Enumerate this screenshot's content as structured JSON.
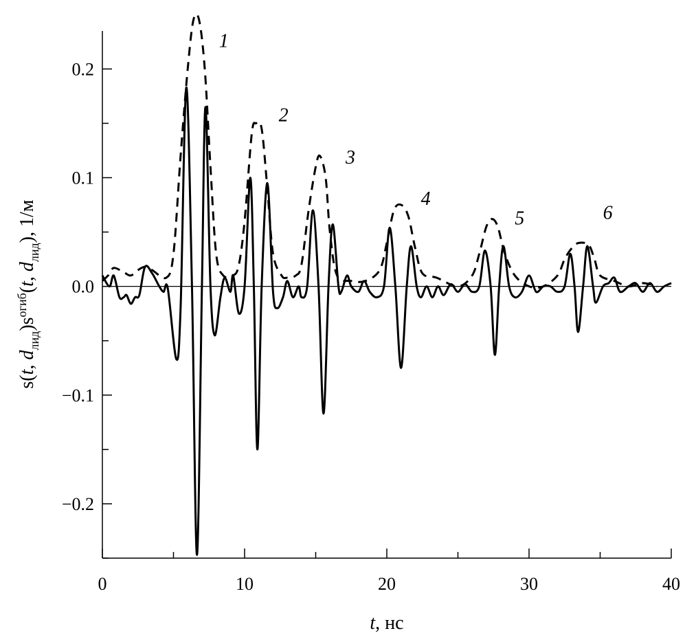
{
  "chart_data": {
    "type": "line",
    "title": "",
    "xlabel": {
      "var": "t",
      "rest": ", нс"
    },
    "ylabel": {
      "s1": "s(",
      "t1": "t",
      "c1": ", ",
      "d1": "d",
      "sub1": "лид",
      "p1": ")s",
      "sup": "огиб",
      "s2": "(",
      "t2": "t",
      "c2": ", ",
      "d2": "d",
      "sub2": "лид",
      "p2": "), 1/м"
    },
    "xlim": [
      0,
      40
    ],
    "ylim": [
      -0.25,
      0.235
    ],
    "xticks": [
      0,
      10,
      20,
      30,
      40
    ],
    "xtick_labels": [
      "0",
      "10",
      "20",
      "30",
      "40"
    ],
    "xminor": [
      5,
      15,
      25,
      35
    ],
    "yticks": [
      -0.2,
      -0.1,
      0.0,
      0.1,
      0.2
    ],
    "ytick_labels": [
      "−0.2",
      "−0.1",
      "0.0",
      "0.1",
      "0.2"
    ],
    "yminor": [
      -0.25,
      -0.15,
      -0.05,
      0.05,
      0.15
    ],
    "grid": false,
    "zero_line": true,
    "color": "#000000",
    "series": [
      {
        "style": "solid",
        "points": [
          [
            0,
            0.01
          ],
          [
            0.5,
            0.0
          ],
          [
            0.8,
            0.01
          ],
          [
            1.2,
            -0.01
          ],
          [
            1.5,
            -0.01
          ],
          [
            1.7,
            -0.008
          ],
          [
            2.0,
            -0.016
          ],
          [
            2.3,
            -0.01
          ],
          [
            2.6,
            -0.008
          ],
          [
            3.0,
            0.018
          ],
          [
            3.5,
            0.012
          ],
          [
            4.0,
            0.0
          ],
          [
            4.3,
            -0.005
          ],
          [
            4.6,
            -0.002
          ],
          [
            5.2,
            -0.067
          ],
          [
            5.5,
            -0.02
          ],
          [
            5.9,
            0.183
          ],
          [
            6.3,
            0.0
          ],
          [
            6.65,
            -0.247
          ],
          [
            7.0,
            0.0
          ],
          [
            7.25,
            0.165
          ],
          [
            7.6,
            0.0
          ],
          [
            7.9,
            -0.045
          ],
          [
            8.3,
            -0.01
          ],
          [
            8.6,
            0.008
          ],
          [
            9.0,
            -0.005
          ],
          [
            9.2,
            0.01
          ],
          [
            9.6,
            -0.025
          ],
          [
            10.0,
            0.0
          ],
          [
            10.4,
            0.1
          ],
          [
            10.65,
            0.0
          ],
          [
            10.9,
            -0.15
          ],
          [
            11.2,
            0.0
          ],
          [
            11.6,
            0.095
          ],
          [
            12.0,
            -0.005
          ],
          [
            12.3,
            -0.02
          ],
          [
            12.7,
            -0.01
          ],
          [
            13.0,
            0.005
          ],
          [
            13.4,
            -0.01
          ],
          [
            13.8,
            0.0
          ],
          [
            14.0,
            -0.01
          ],
          [
            14.4,
            0.0
          ],
          [
            14.8,
            0.07
          ],
          [
            15.2,
            0.0
          ],
          [
            15.55,
            -0.117
          ],
          [
            15.9,
            0.0
          ],
          [
            16.2,
            0.057
          ],
          [
            16.6,
            0.0
          ],
          [
            16.8,
            -0.005
          ],
          [
            17.2,
            0.01
          ],
          [
            17.5,
            0.0
          ],
          [
            18.0,
            -0.005
          ],
          [
            18.4,
            0.005
          ],
          [
            18.8,
            -0.005
          ],
          [
            19.3,
            -0.01
          ],
          [
            19.8,
            0.0
          ],
          [
            20.2,
            0.054
          ],
          [
            20.6,
            0.0
          ],
          [
            21.0,
            -0.075
          ],
          [
            21.4,
            0.0
          ],
          [
            21.7,
            0.037
          ],
          [
            22.1,
            0.0
          ],
          [
            22.4,
            -0.01
          ],
          [
            22.8,
            0.0
          ],
          [
            23.2,
            -0.01
          ],
          [
            23.6,
            0.0
          ],
          [
            24.0,
            -0.008
          ],
          [
            24.5,
            0.002
          ],
          [
            25.0,
            -0.005
          ],
          [
            25.5,
            0.002
          ],
          [
            26.0,
            -0.005
          ],
          [
            26.5,
            0.0
          ],
          [
            26.9,
            0.033
          ],
          [
            27.3,
            0.0
          ],
          [
            27.6,
            -0.063
          ],
          [
            27.9,
            0.0
          ],
          [
            28.2,
            0.037
          ],
          [
            28.6,
            0.0
          ],
          [
            29.0,
            -0.01
          ],
          [
            29.5,
            -0.005
          ],
          [
            30.0,
            0.01
          ],
          [
            30.5,
            -0.005
          ],
          [
            31.0,
            0.0
          ],
          [
            31.5,
            0.0
          ],
          [
            32.0,
            -0.005
          ],
          [
            32.5,
            0.0
          ],
          [
            32.9,
            0.03
          ],
          [
            33.2,
            0.0
          ],
          [
            33.45,
            -0.042
          ],
          [
            33.8,
            0.0
          ],
          [
            34.1,
            0.037
          ],
          [
            34.5,
            0.0
          ],
          [
            34.7,
            -0.015
          ],
          [
            35.2,
            0.0
          ],
          [
            35.6,
            0.003
          ],
          [
            36.0,
            0.008
          ],
          [
            36.4,
            -0.005
          ],
          [
            37.0,
            0.0
          ],
          [
            37.5,
            0.003
          ],
          [
            38.0,
            -0.005
          ],
          [
            38.5,
            0.003
          ],
          [
            39.0,
            -0.005
          ],
          [
            39.5,
            0.0
          ],
          [
            40.0,
            0.003
          ]
        ]
      },
      {
        "style": "dashed",
        "points": [
          [
            0,
            0.005
          ],
          [
            0.4,
            0.01
          ],
          [
            0.8,
            0.017
          ],
          [
            1.5,
            0.013
          ],
          [
            2.0,
            0.01
          ],
          [
            2.5,
            0.015
          ],
          [
            3.0,
            0.018
          ],
          [
            3.5,
            0.015
          ],
          [
            4.5,
            0.008
          ],
          [
            5.0,
            0.03
          ],
          [
            5.5,
            0.12
          ],
          [
            6.0,
            0.2
          ],
          [
            6.4,
            0.245
          ],
          [
            6.8,
            0.245
          ],
          [
            7.2,
            0.2
          ],
          [
            7.6,
            0.11
          ],
          [
            8.0,
            0.03
          ],
          [
            8.5,
            0.01
          ],
          [
            9.2,
            0.01
          ],
          [
            9.6,
            0.02
          ],
          [
            10.0,
            0.06
          ],
          [
            10.5,
            0.14
          ],
          [
            10.8,
            0.15
          ],
          [
            11.2,
            0.145
          ],
          [
            11.6,
            0.09
          ],
          [
            12.0,
            0.03
          ],
          [
            12.6,
            0.01
          ],
          [
            13.0,
            0.008
          ],
          [
            13.6,
            0.01
          ],
          [
            14.0,
            0.02
          ],
          [
            14.5,
            0.07
          ],
          [
            15.0,
            0.11
          ],
          [
            15.3,
            0.12
          ],
          [
            15.7,
            0.1
          ],
          [
            16.0,
            0.05
          ],
          [
            16.5,
            0.01
          ],
          [
            17.5,
            0.005
          ],
          [
            18.5,
            0.005
          ],
          [
            19.5,
            0.015
          ],
          [
            20.0,
            0.04
          ],
          [
            20.5,
            0.07
          ],
          [
            21.0,
            0.075
          ],
          [
            21.5,
            0.065
          ],
          [
            22.0,
            0.035
          ],
          [
            22.5,
            0.012
          ],
          [
            23.5,
            0.008
          ],
          [
            25.0,
            0.0
          ],
          [
            26.0,
            0.01
          ],
          [
            26.5,
            0.03
          ],
          [
            27.0,
            0.055
          ],
          [
            27.4,
            0.062
          ],
          [
            27.8,
            0.055
          ],
          [
            28.3,
            0.03
          ],
          [
            29.0,
            0.01
          ],
          [
            30.0,
            0.0
          ],
          [
            31.0,
            0.0
          ],
          [
            32.0,
            0.01
          ],
          [
            32.5,
            0.025
          ],
          [
            33.0,
            0.035
          ],
          [
            33.5,
            0.04
          ],
          [
            34.2,
            0.038
          ],
          [
            34.6,
            0.025
          ],
          [
            35.0,
            0.01
          ],
          [
            36.0,
            0.005
          ],
          [
            37.0,
            0.0
          ],
          [
            38.0,
            0.003
          ],
          [
            39.0,
            0.0
          ]
        ]
      }
    ],
    "annotations": [
      {
        "text": "1",
        "x": 8.2,
        "y": 0.22
      },
      {
        "text": "2",
        "x": 12.4,
        "y": 0.152
      },
      {
        "text": "3",
        "x": 17.1,
        "y": 0.113
      },
      {
        "text": "4",
        "x": 22.4,
        "y": 0.075
      },
      {
        "text": "5",
        "x": 29.0,
        "y": 0.057
      },
      {
        "text": "6",
        "x": 35.2,
        "y": 0.062
      }
    ]
  }
}
